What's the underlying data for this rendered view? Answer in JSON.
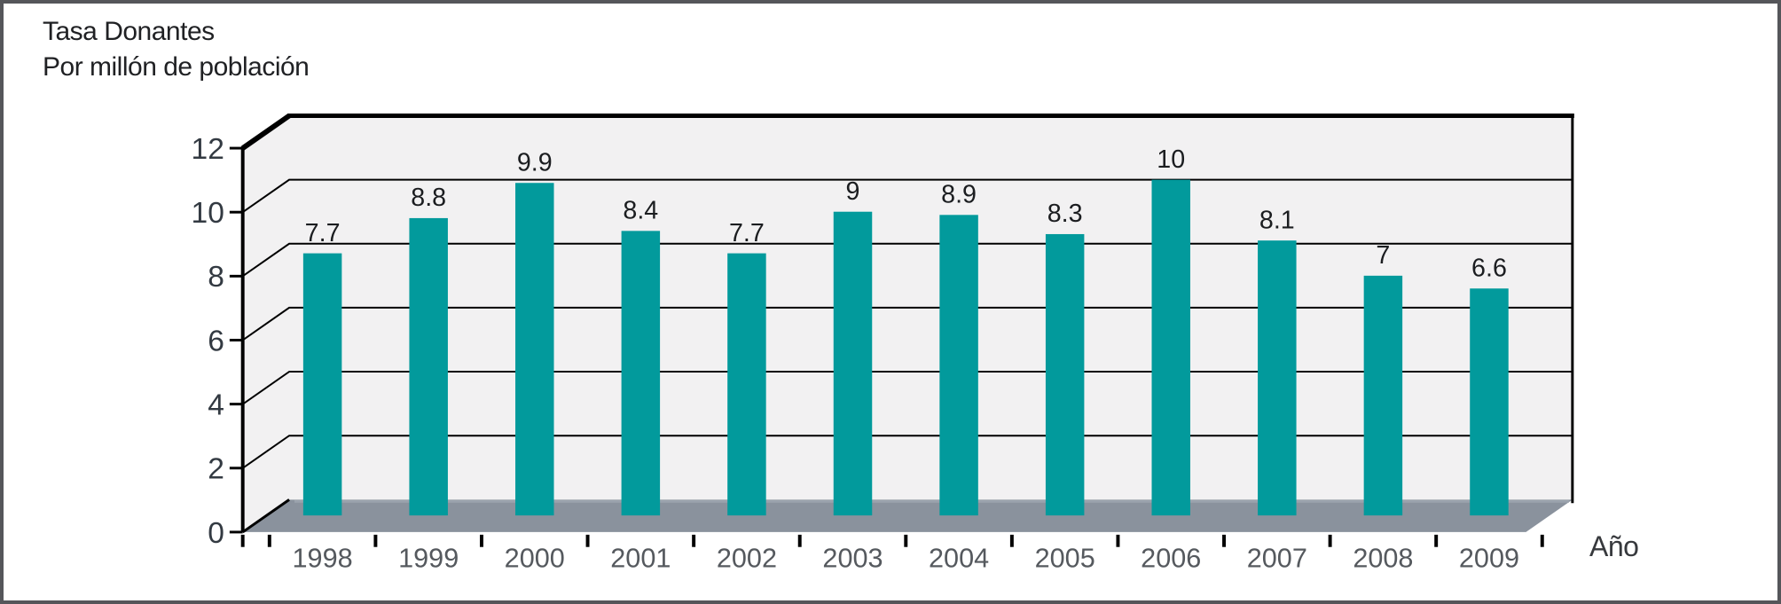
{
  "figure": {
    "title_line1": "Tasa Donantes",
    "title_line2": "Por millón de población"
  },
  "chart_data": {
    "type": "bar",
    "style": "3d-perspective-column",
    "title": "Tasa Donantes Por millón de población",
    "title_lines": [
      "Tasa Donantes",
      "Por millón de población"
    ],
    "xlabel": "Año",
    "categories": [
      "1998",
      "1999",
      "2000",
      "2001",
      "2002",
      "2003",
      "2004",
      "2005",
      "2006",
      "2007",
      "2008",
      "2009"
    ],
    "values": [
      7.7,
      8.8,
      9.9,
      8.4,
      7.7,
      9,
      8.9,
      8.3,
      10,
      8.1,
      7,
      6.6
    ],
    "data_labels": [
      "7.7",
      "8.8",
      "9.9",
      "8.4",
      "7.7",
      "9",
      "8.9",
      "8.3",
      "10",
      "8.1",
      "7",
      "6.6"
    ],
    "ylim": [
      0,
      12
    ],
    "yticks": [
      0,
      2,
      4,
      6,
      8,
      10,
      12
    ],
    "grid": true,
    "legend": false,
    "colors": {
      "bar": "#029a9c",
      "wall": "#f2f1f2",
      "floor": "#8a929d",
      "floor_highlight": "#9ba3ad",
      "grid_line": "#000000",
      "frame_line": "#000000",
      "title_text": "#202124",
      "ytick_text": "#333a42",
      "xtick_text": "#55595e",
      "value_text": "#1b1d20",
      "xlabel_text": "#37393d"
    }
  }
}
